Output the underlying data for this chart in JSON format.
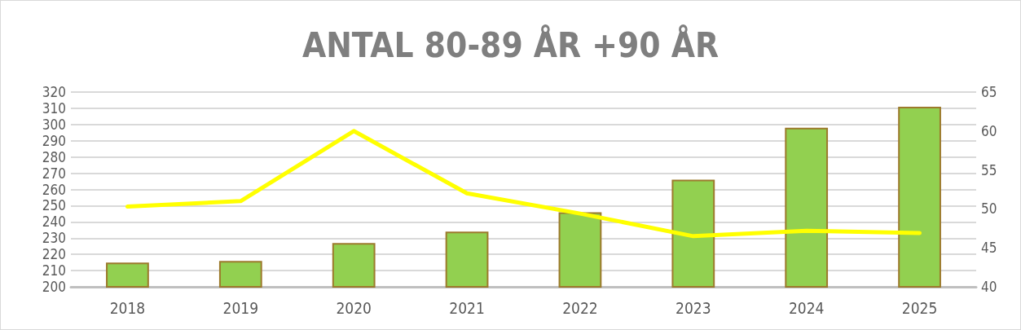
{
  "chart_data": {
    "type": "bar",
    "title": "ANTAL 80-89 ÅR +90 ÅR",
    "categories": [
      "2018",
      "2019",
      "2020",
      "2021",
      "2022",
      "2023",
      "2024",
      "2025"
    ],
    "series": [
      {
        "color": "#92d050",
        "values": [
          215,
          216,
          227,
          234,
          246,
          266,
          298,
          311
        ]
      },
      {
        "type": "line",
        "axis": "y2",
        "color": "#ffff00",
        "values": [
          50.3,
          51,
          60,
          52,
          49.4,
          46.5,
          47.2,
          46.9
        ]
      }
    ],
    "ylim": [
      200,
      320
    ],
    "yticks": [
      200,
      210,
      220,
      230,
      240,
      250,
      260,
      270,
      280,
      290,
      300,
      310,
      320
    ],
    "y2lim": [
      40,
      65
    ],
    "y2ticks": [
      40,
      45,
      50,
      55,
      60,
      65
    ],
    "grid": "y",
    "marker": "none",
    "line_style": "solid"
  }
}
